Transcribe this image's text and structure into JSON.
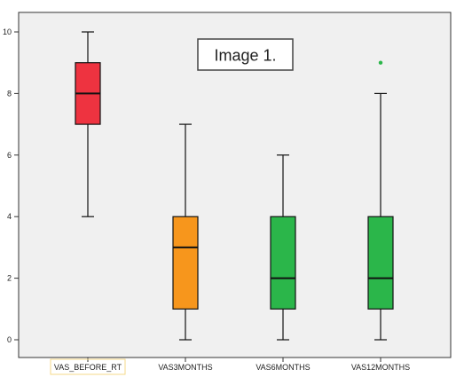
{
  "chart_data": {
    "type": "boxplot",
    "title": "",
    "xlabel": "",
    "ylabel": "",
    "ylim": [
      -0.6,
      10.4
    ],
    "yticks": [
      0,
      2,
      4,
      6,
      8,
      10
    ],
    "grid": false,
    "legend": "none",
    "annotation": "Image 1.",
    "categories": [
      "VAS_BEFORE_RT",
      "VAS3MONTHS",
      "VAS6MONTHS",
      "VAS12MONTHS"
    ],
    "boxes": [
      {
        "category": "VAS_BEFORE_RT",
        "whisker_low": 4,
        "q1": 7,
        "median": 8,
        "q3": 9,
        "whisker_high": 10,
        "outliers": [],
        "color": "#ee3340"
      },
      {
        "category": "VAS3MONTHS",
        "whisker_low": 0,
        "q1": 1,
        "median": 3,
        "q3": 4,
        "whisker_high": 7,
        "outliers": [],
        "color": "#f7961c"
      },
      {
        "category": "VAS6MONTHS",
        "whisker_low": 0,
        "q1": 1,
        "median": 2,
        "q3": 4,
        "whisker_high": 6,
        "outliers": [],
        "color": "#2bb64a"
      },
      {
        "category": "VAS12MONTHS",
        "whisker_low": 0,
        "q1": 1,
        "median": 2,
        "q3": 4,
        "whisker_high": 8,
        "outliers": [
          9
        ],
        "color": "#2bb64a"
      }
    ],
    "colors": {
      "plot_background": "#f0f0f0",
      "outlier": "#2bb64a",
      "selected_label_border": "#f5d98a"
    }
  }
}
